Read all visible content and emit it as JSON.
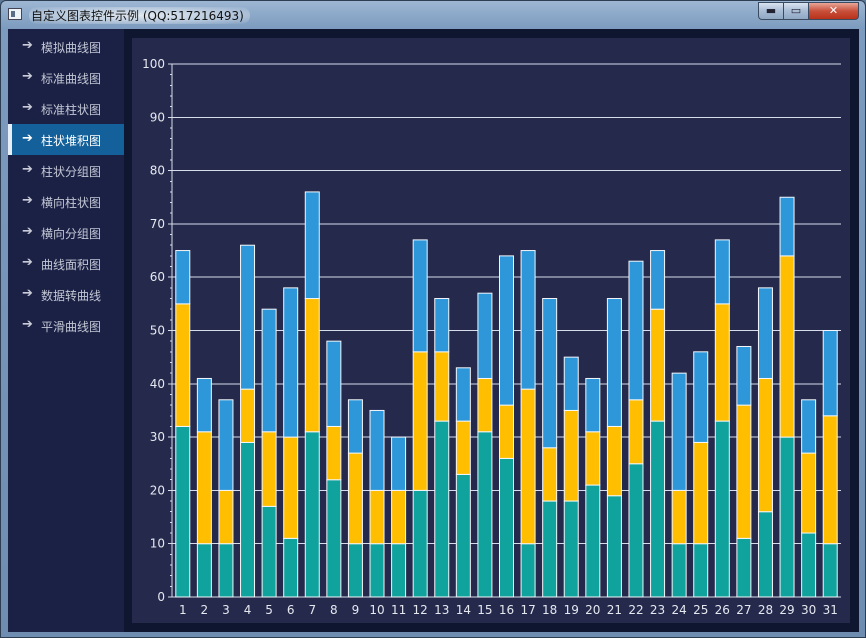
{
  "window": {
    "title": "自定义图表控件示例 (QQ:517216493)",
    "min_label": "▬",
    "max_label": "▭",
    "close_label": "✕"
  },
  "sidebar": {
    "items": [
      {
        "label": "模拟曲线图",
        "active": false
      },
      {
        "label": "标准曲线图",
        "active": false
      },
      {
        "label": "标准柱状图",
        "active": false
      },
      {
        "label": "柱状堆积图",
        "active": true
      },
      {
        "label": "柱状分组图",
        "active": false
      },
      {
        "label": "横向柱状图",
        "active": false
      },
      {
        "label": "横向分组图",
        "active": false
      },
      {
        "label": "曲线面积图",
        "active": false
      },
      {
        "label": "数据转曲线",
        "active": false
      },
      {
        "label": "平滑曲线图",
        "active": false
      }
    ]
  },
  "colors": {
    "series": [
      "#10a29d",
      "#ffbf00",
      "#2d97d9"
    ],
    "grid": "#d8dcea",
    "text": "#e6e8f0"
  },
  "chart_data": {
    "type": "bar",
    "stacked": true,
    "categories": [
      "1",
      "2",
      "3",
      "4",
      "5",
      "6",
      "7",
      "8",
      "9",
      "10",
      "11",
      "12",
      "13",
      "14",
      "15",
      "16",
      "17",
      "18",
      "19",
      "20",
      "21",
      "22",
      "23",
      "24",
      "25",
      "26",
      "27",
      "28",
      "29",
      "30",
      "31"
    ],
    "series": [
      {
        "values": [
          32,
          10,
          10,
          29,
          17,
          11,
          31,
          22,
          10,
          10,
          10,
          20,
          33,
          23,
          31,
          26,
          10,
          18,
          18,
          21,
          19,
          25,
          33,
          10,
          10,
          33,
          11,
          16,
          30,
          12,
          10
        ]
      },
      {
        "values": [
          23,
          21,
          10,
          10,
          14,
          19,
          25,
          10,
          17,
          10,
          10,
          26,
          13,
          10,
          10,
          10,
          29,
          10,
          17,
          10,
          13,
          12,
          21,
          10,
          19,
          22,
          25,
          25,
          34,
          15,
          24
        ]
      },
      {
        "values": [
          10,
          10,
          17,
          27,
          23,
          28,
          20,
          16,
          10,
          15,
          10,
          21,
          10,
          10,
          16,
          28,
          26,
          28,
          10,
          10,
          24,
          26,
          11,
          22,
          17,
          12,
          11,
          17,
          11,
          10,
          16
        ]
      }
    ],
    "ylim": [
      0,
      100
    ],
    "yticks": [
      0,
      10,
      20,
      30,
      40,
      50,
      60,
      70,
      80,
      90,
      100
    ],
    "grid": true
  }
}
